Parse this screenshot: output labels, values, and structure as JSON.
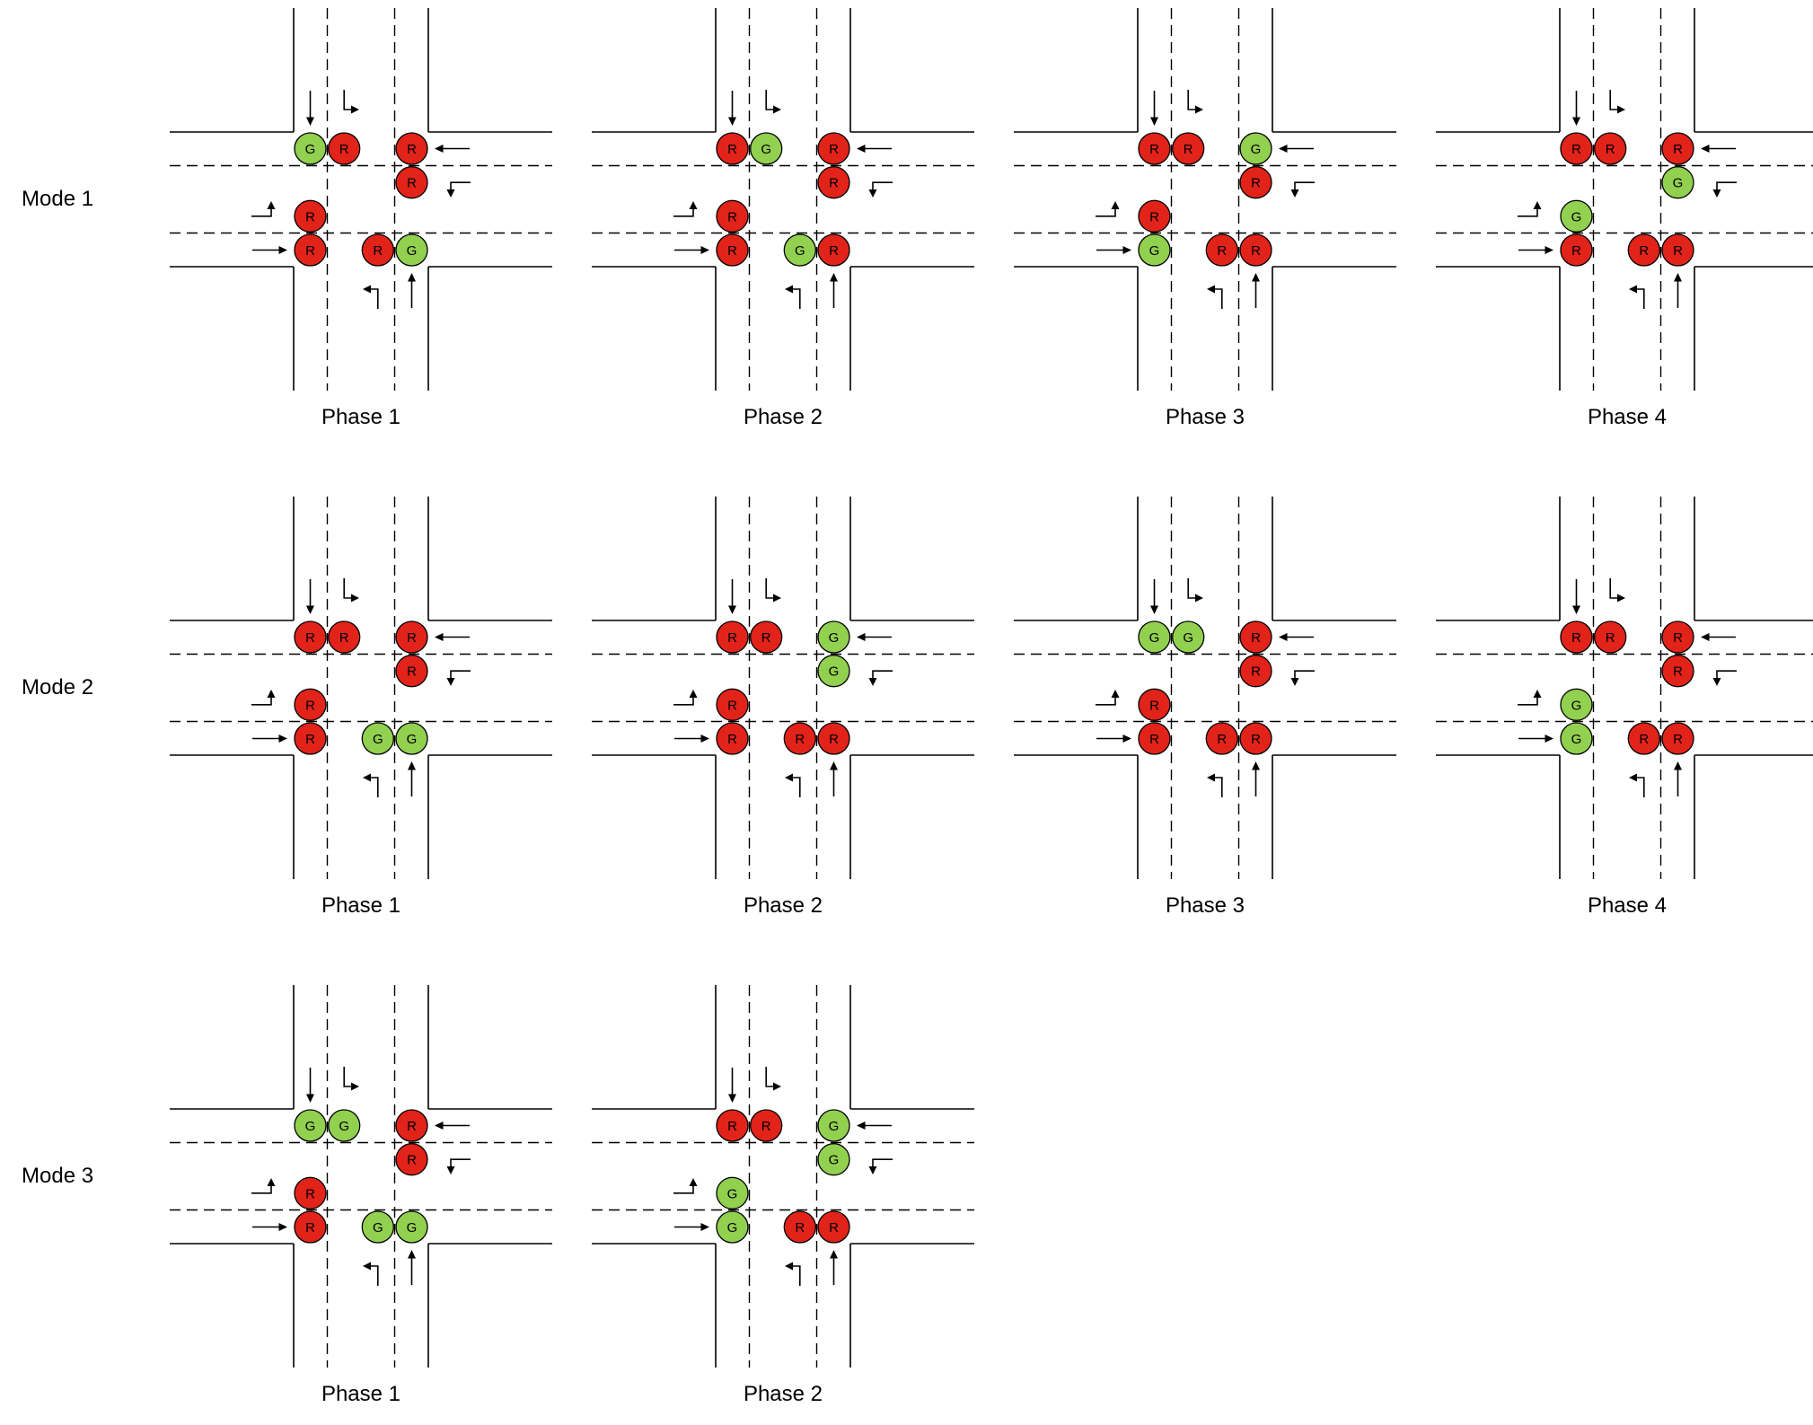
{
  "figure": {
    "road_color": "#000000",
    "signal_colors": {
      "R": "#e2231a",
      "G": "#92d050"
    },
    "signal_letter_color": "#000000",
    "modes": [
      {
        "label": "Mode 1",
        "phases": [
          {
            "label": "Phase 1",
            "signals": {
              "top": [
                "G",
                "R"
              ],
              "right": [
                "R",
                "R"
              ],
              "left": [
                "R",
                "R"
              ],
              "bottom": [
                "R",
                "G"
              ]
            }
          },
          {
            "label": "Phase 2",
            "signals": {
              "top": [
                "R",
                "G"
              ],
              "right": [
                "R",
                "R"
              ],
              "left": [
                "R",
                "R"
              ],
              "bottom": [
                "G",
                "R"
              ]
            }
          },
          {
            "label": "Phase 3",
            "signals": {
              "top": [
                "R",
                "R"
              ],
              "right": [
                "G",
                "R"
              ],
              "left": [
                "R",
                "G"
              ],
              "bottom": [
                "R",
                "R"
              ]
            }
          },
          {
            "label": "Phase 4",
            "signals": {
              "top": [
                "R",
                "R"
              ],
              "right": [
                "R",
                "G"
              ],
              "left": [
                "G",
                "R"
              ],
              "bottom": [
                "R",
                "R"
              ]
            }
          }
        ]
      },
      {
        "label": "Mode 2",
        "phases": [
          {
            "label": "Phase 1",
            "signals": {
              "top": [
                "R",
                "R"
              ],
              "right": [
                "R",
                "R"
              ],
              "left": [
                "R",
                "R"
              ],
              "bottom": [
                "G",
                "G"
              ]
            }
          },
          {
            "label": "Phase 2",
            "signals": {
              "top": [
                "R",
                "R"
              ],
              "right": [
                "G",
                "G"
              ],
              "left": [
                "R",
                "R"
              ],
              "bottom": [
                "R",
                "R"
              ]
            }
          },
          {
            "label": "Phase 3",
            "signals": {
              "top": [
                "G",
                "G"
              ],
              "right": [
                "R",
                "R"
              ],
              "left": [
                "R",
                "R"
              ],
              "bottom": [
                "R",
                "R"
              ]
            }
          },
          {
            "label": "Phase 4",
            "signals": {
              "top": [
                "R",
                "R"
              ],
              "right": [
                "R",
                "R"
              ],
              "left": [
                "G",
                "G"
              ],
              "bottom": [
                "R",
                "R"
              ]
            }
          }
        ]
      },
      {
        "label": "Mode 3",
        "phases": [
          {
            "label": "Phase 1",
            "signals": {
              "top": [
                "G",
                "G"
              ],
              "right": [
                "R",
                "R"
              ],
              "left": [
                "R",
                "R"
              ],
              "bottom": [
                "G",
                "G"
              ]
            }
          },
          {
            "label": "Phase 2",
            "signals": {
              "top": [
                "R",
                "R"
              ],
              "right": [
                "G",
                "G"
              ],
              "left": [
                "G",
                "G"
              ],
              "bottom": [
                "R",
                "R"
              ]
            }
          }
        ]
      }
    ]
  }
}
